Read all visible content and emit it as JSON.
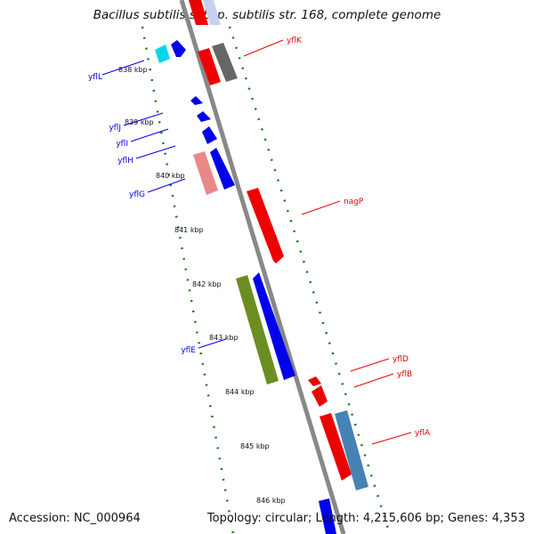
{
  "title": "Bacillus subtilis subsp. subtilis str. 168, complete genome",
  "footer": {
    "accession": "Accession: NC_000964",
    "summary": "Topology: circular; Length: 4,215,606 bp; Genes: 4,353"
  },
  "ticks": [
    "838 kbp",
    "839 kbp",
    "840 kbp",
    "841 kbp",
    "842 kbp",
    "843 kbp",
    "844 kbp",
    "845 kbp",
    "846 kbp"
  ],
  "genes_left": [
    "yflL",
    "yflJ",
    "yflI",
    "yflH",
    "yflG",
    "yflE"
  ],
  "genes_right": [
    "yflK",
    "nagP",
    "yflD",
    "yflB",
    "yflA"
  ],
  "colors": {
    "reverse_strand": "#0000ee",
    "forward_strand": "#ee0000",
    "backbone": "#888888",
    "ring_ticks": "#1a7a1a",
    "cyan_feature": "#00d8e8",
    "pink_feature": "#e88888",
    "gray_feature": "#666666",
    "olive_feature": "#6b8e23",
    "steel_feature": "#4682b4"
  }
}
